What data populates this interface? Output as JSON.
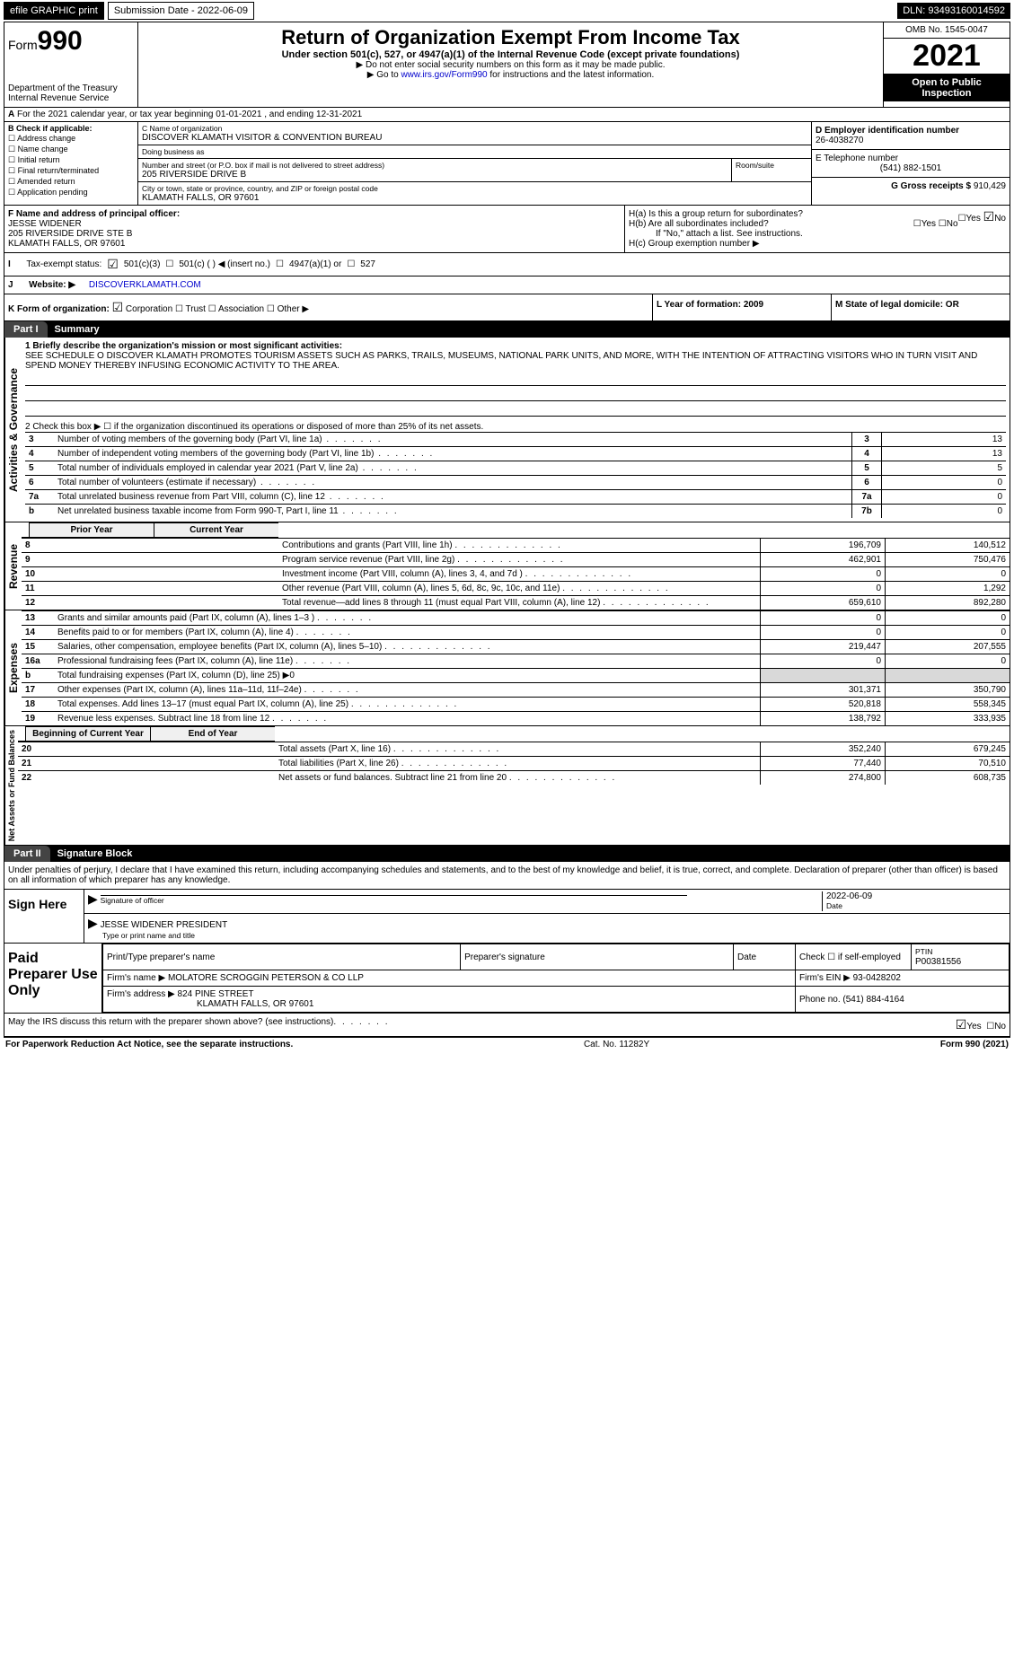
{
  "top": {
    "efile": "efile GRAPHIC print",
    "sub_label": "Submission Date - 2022-06-09",
    "dln": "DLN: 93493160014592"
  },
  "header": {
    "form_prefix": "Form",
    "form_number": "990",
    "title": "Return of Organization Exempt From Income Tax",
    "subtitle": "Under section 501(c), 527, or 4947(a)(1) of the Internal Revenue Code (except private foundations)",
    "note1": "▶ Do not enter social security numbers on this form as it may be made public.",
    "note2_pre": "▶ Go to ",
    "note2_link": "www.irs.gov/Form990",
    "note2_post": " for instructions and the latest information.",
    "dept": "Department of the Treasury",
    "irs": "Internal Revenue Service",
    "omb": "OMB No. 1545-0047",
    "year": "2021",
    "open": "Open to Public Inspection"
  },
  "A": {
    "text": "For the 2021 calendar year, or tax year beginning 01-01-2021    , and ending 12-31-2021"
  },
  "B": {
    "label": "B Check if applicable:",
    "opts": [
      "Address change",
      "Name change",
      "Initial return",
      "Final return/terminated",
      "Amended return",
      "Application pending"
    ]
  },
  "C": {
    "label": "C Name of organization",
    "name": "DISCOVER KLAMATH VISITOR & CONVENTION BUREAU",
    "dba_label": "Doing business as",
    "dba": "",
    "street_label": "Number and street (or P.O. box if mail is not delivered to street address)",
    "street": "205 RIVERSIDE DRIVE B",
    "room_label": "Room/suite",
    "city_label": "City or town, state or province, country, and ZIP or foreign postal code",
    "city": "KLAMATH FALLS, OR  97601"
  },
  "D": {
    "label": "D Employer identification number",
    "val": "26-4038270"
  },
  "E": {
    "label": "E Telephone number",
    "val": "(541) 882-1501"
  },
  "G": {
    "label": "G Gross receipts $",
    "val": "910,429"
  },
  "F": {
    "label": "F  Name and address of principal officer:",
    "name": "JESSE WIDENER",
    "line2": "205 RIVERSIDE DRIVE STE B",
    "line3": "KLAMATH FALLS, OR  97601"
  },
  "H": {
    "a": "H(a)  Is this a group return for subordinates?",
    "b": "H(b)  Are all subordinates included?",
    "b_note": "If \"No,\" attach a list. See instructions.",
    "c": "H(c)  Group exemption number ▶",
    "yes": "Yes",
    "no": "No"
  },
  "I": {
    "label": "Tax-exempt status:",
    "o1": "501(c)(3)",
    "o2": "501(c) (   ) ◀ (insert no.)",
    "o3": "4947(a)(1) or",
    "o4": "527"
  },
  "J": {
    "label": "Website: ▶",
    "val": "DISCOVERKLAMATH.COM"
  },
  "K": {
    "label": "K Form of organization:",
    "opts": [
      "Corporation",
      "Trust",
      "Association",
      "Other ▶"
    ]
  },
  "L": {
    "label": "L Year of formation: 2009"
  },
  "M": {
    "label": "M State of legal domicile: OR"
  },
  "part1": {
    "tab": "Part I",
    "title": "Summary",
    "q1_label": "1  Briefly describe the organization's mission or most significant activities:",
    "q1_text": "SEE SCHEDULE O DISCOVER KLAMATH PROMOTES TOURISM ASSETS SUCH AS PARKS, TRAILS, MUSEUMS, NATIONAL PARK UNITS, AND MORE, WITH THE INTENTION OF ATTRACTING VISITORS WHO IN TURN VISIT AND SPEND MONEY THEREBY INFUSING ECONOMIC ACTIVITY TO THE AREA.",
    "q2": "2  Check this box ▶ ☐  if the organization discontinued its operations or disposed of more than 25% of its net assets.",
    "rows_ag": [
      {
        "n": "3",
        "t": "Number of voting members of the governing body (Part VI, line 1a)",
        "box": "3",
        "v": "13"
      },
      {
        "n": "4",
        "t": "Number of independent voting members of the governing body (Part VI, line 1b)",
        "box": "4",
        "v": "13"
      },
      {
        "n": "5",
        "t": "Total number of individuals employed in calendar year 2021 (Part V, line 2a)",
        "box": "5",
        "v": "5"
      },
      {
        "n": "6",
        "t": "Total number of volunteers (estimate if necessary)",
        "box": "6",
        "v": "0"
      },
      {
        "n": "7a",
        "t": "Total unrelated business revenue from Part VIII, column (C), line 12",
        "box": "7a",
        "v": "0"
      },
      {
        "n": "b",
        "t": "Net unrelated business taxable income from Form 990-T, Part I, line 11",
        "box": "7b",
        "v": "0"
      }
    ],
    "py": "Prior Year",
    "cy": "Current Year",
    "revenue": [
      {
        "n": "8",
        "t": "Contributions and grants (Part VIII, line 1h)",
        "p": "196,709",
        "c": "140,512"
      },
      {
        "n": "9",
        "t": "Program service revenue (Part VIII, line 2g)",
        "p": "462,901",
        "c": "750,476"
      },
      {
        "n": "10",
        "t": "Investment income (Part VIII, column (A), lines 3, 4, and 7d )",
        "p": "0",
        "c": "0"
      },
      {
        "n": "11",
        "t": "Other revenue (Part VIII, column (A), lines 5, 6d, 8c, 9c, 10c, and 11e)",
        "p": "0",
        "c": "1,292"
      },
      {
        "n": "12",
        "t": "Total revenue—add lines 8 through 11 (must equal Part VIII, column (A), line 12)",
        "p": "659,610",
        "c": "892,280"
      }
    ],
    "expenses": [
      {
        "n": "13",
        "t": "Grants and similar amounts paid (Part IX, column (A), lines 1–3 )",
        "p": "0",
        "c": "0",
        "dots": "short"
      },
      {
        "n": "14",
        "t": "Benefits paid to or for members (Part IX, column (A), line 4)",
        "p": "0",
        "c": "0",
        "dots": "short"
      },
      {
        "n": "15",
        "t": "Salaries, other compensation, employee benefits (Part IX, column (A), lines 5–10)",
        "p": "219,447",
        "c": "207,555"
      },
      {
        "n": "16a",
        "t": "Professional fundraising fees (Part IX, column (A), line 11e)",
        "p": "0",
        "c": "0",
        "dots": "short"
      },
      {
        "n": "b",
        "t": "Total fundraising expenses (Part IX, column (D), line 25) ▶0",
        "p": "",
        "c": "",
        "gray": true
      },
      {
        "n": "17",
        "t": "Other expenses (Part IX, column (A), lines 11a–11d, 11f–24e)",
        "p": "301,371",
        "c": "350,790",
        "dots": "short"
      },
      {
        "n": "18",
        "t": "Total expenses. Add lines 13–17 (must equal Part IX, column (A), line 25)",
        "p": "520,818",
        "c": "558,345"
      },
      {
        "n": "19",
        "t": "Revenue less expenses. Subtract line 18 from line 12",
        "p": "138,792",
        "c": "333,935",
        "dots": "short"
      }
    ],
    "boy": "Beginning of Current Year",
    "eoy": "End of Year",
    "netassets": [
      {
        "n": "20",
        "t": "Total assets (Part X, line 16)",
        "p": "352,240",
        "c": "679,245"
      },
      {
        "n": "21",
        "t": "Total liabilities (Part X, line 26)",
        "p": "77,440",
        "c": "70,510"
      },
      {
        "n": "22",
        "t": "Net assets or fund balances. Subtract line 21 from line 20",
        "p": "274,800",
        "c": "608,735"
      }
    ],
    "side_ag": "Activities & Governance",
    "side_rev": "Revenue",
    "side_exp": "Expenses",
    "side_net": "Net Assets or Fund Balances"
  },
  "part2": {
    "tab": "Part II",
    "title": "Signature Block",
    "decl": "Under penalties of perjury, I declare that I have examined this return, including accompanying schedules and statements, and to the best of my knowledge and belief, it is true, correct, and complete. Declaration of preparer (other than officer) is based on all information of which preparer has any knowledge."
  },
  "sign": {
    "label": "Sign Here",
    "sig": "Signature of officer",
    "date": "Date",
    "date_val": "2022-06-09",
    "typed": "JESSE WIDENER PRESIDENT",
    "typed_label": "Type or print name and title"
  },
  "paid": {
    "label": "Paid Preparer Use Only",
    "h": [
      "Print/Type preparer's name",
      "Preparer's signature",
      "Date",
      "Check ☐ if self-employed",
      "PTIN"
    ],
    "ptin": "P00381556",
    "firm_label": "Firm's name   ▶",
    "firm": "MOLATORE SCROGGIN PETERSON & CO LLP",
    "ein_label": "Firm's EIN ▶",
    "ein": "93-0428202",
    "addr_label": "Firm's address ▶",
    "addr": "824 PINE STREET",
    "addr2": "KLAMATH FALLS, OR  97601",
    "phone_label": "Phone no.",
    "phone": "(541) 884-4164"
  },
  "discuss": {
    "q": "May the IRS discuss this return with the preparer shown above? (see instructions)",
    "yes": "Yes",
    "no": "No"
  },
  "footer": {
    "left": "For Paperwork Reduction Act Notice, see the separate instructions.",
    "mid": "Cat. No. 11282Y",
    "right": "Form 990 (2021)"
  }
}
